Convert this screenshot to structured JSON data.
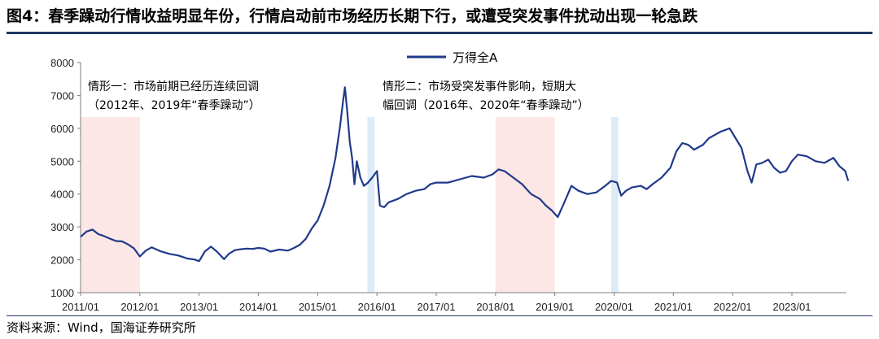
{
  "header": {
    "title": "图4：春季躁动行情收益明显年份，行情启动前市场经历长期下行，或遭受突发事件扰动出现一轮急跌"
  },
  "footer": {
    "source": "资料来源：Wind，国海证券研究所"
  },
  "chart_data": {
    "type": "line",
    "title": "",
    "xlabel": "",
    "ylabel": "",
    "ylim": [
      1000,
      8000
    ],
    "yticks": [
      1000,
      2000,
      3000,
      4000,
      5000,
      6000,
      7000,
      8000
    ],
    "xticks": [
      "2011/01",
      "2012/01",
      "2013/01",
      "2014/01",
      "2015/01",
      "2016/01",
      "2017/01",
      "2018/01",
      "2019/01",
      "2020/01",
      "2021/01",
      "2022/01",
      "2023/01"
    ],
    "legend": {
      "position": "top-center"
    },
    "series": [
      {
        "name": "万得全A",
        "color": "#1f3a8a",
        "x": [
          2011.0,
          2011.1,
          2011.2,
          2011.3,
          2011.4,
          2011.5,
          2011.6,
          2011.7,
          2011.8,
          2011.9,
          2012.0,
          2012.1,
          2012.2,
          2012.35,
          2012.5,
          2012.65,
          2012.8,
          2012.92,
          2013.0,
          2013.1,
          2013.2,
          2013.3,
          2013.42,
          2013.5,
          2013.6,
          2013.7,
          2013.8,
          2013.9,
          2014.0,
          2014.1,
          2014.2,
          2014.35,
          2014.5,
          2014.6,
          2014.7,
          2014.8,
          2014.9,
          2015.0,
          2015.1,
          2015.2,
          2015.3,
          2015.38,
          2015.43,
          2015.46,
          2015.5,
          2015.54,
          2015.58,
          2015.62,
          2015.66,
          2015.72,
          2015.78,
          2015.85,
          2015.92,
          2016.0,
          2016.05,
          2016.12,
          2016.2,
          2016.35,
          2016.5,
          2016.65,
          2016.8,
          2016.9,
          2017.0,
          2017.2,
          2017.4,
          2017.6,
          2017.8,
          2017.95,
          2018.05,
          2018.15,
          2018.3,
          2018.45,
          2018.6,
          2018.75,
          2018.85,
          2018.95,
          2019.05,
          2019.15,
          2019.28,
          2019.4,
          2019.55,
          2019.7,
          2019.85,
          2019.95,
          2020.05,
          2020.12,
          2020.2,
          2020.3,
          2020.45,
          2020.55,
          2020.65,
          2020.8,
          2020.95,
          2021.05,
          2021.15,
          2021.25,
          2021.35,
          2021.5,
          2021.6,
          2021.7,
          2021.8,
          2021.95,
          2022.05,
          2022.15,
          2022.25,
          2022.32,
          2022.4,
          2022.5,
          2022.6,
          2022.7,
          2022.8,
          2022.9,
          2023.0,
          2023.1,
          2023.25,
          2023.4,
          2023.55,
          2023.7,
          2023.8,
          2023.9,
          2023.95
        ],
        "values": [
          2700,
          2860,
          2920,
          2780,
          2720,
          2640,
          2570,
          2560,
          2470,
          2350,
          2100,
          2280,
          2380,
          2260,
          2180,
          2130,
          2040,
          2010,
          1960,
          2260,
          2400,
          2250,
          2020,
          2180,
          2290,
          2320,
          2340,
          2330,
          2360,
          2340,
          2250,
          2310,
          2280,
          2360,
          2460,
          2640,
          2950,
          3200,
          3650,
          4250,
          5100,
          6100,
          6850,
          7250,
          6500,
          5600,
          5100,
          4300,
          5000,
          4500,
          4250,
          4350,
          4500,
          4700,
          3650,
          3600,
          3750,
          3850,
          4000,
          4100,
          4150,
          4300,
          4350,
          4350,
          4450,
          4550,
          4500,
          4600,
          4750,
          4700,
          4500,
          4300,
          4000,
          3850,
          3650,
          3500,
          3300,
          3700,
          4250,
          4100,
          4000,
          4050,
          4250,
          4400,
          4350,
          3950,
          4100,
          4200,
          4250,
          4150,
          4300,
          4500,
          4800,
          5300,
          5550,
          5500,
          5350,
          5500,
          5700,
          5800,
          5900,
          6000,
          5700,
          5400,
          4700,
          4350,
          4900,
          4950,
          5050,
          4800,
          4650,
          4700,
          5000,
          5200,
          5150,
          5000,
          4950,
          5100,
          4850,
          4700,
          4400
        ]
      }
    ],
    "annotations": [
      {
        "lines": [
          "情形一：市场前期已经历连续回调",
          "（2012年、2019年“春季躁动”）"
        ]
      },
      {
        "lines": [
          "情形二：市场受突发事件影响，短期大",
          "幅回调（2016年、2020年“春季躁动”）"
        ]
      }
    ],
    "highlight_bands": [
      {
        "start": 2011.0,
        "end": 2012.0,
        "color": "#fce6e6"
      },
      {
        "start": 2018.0,
        "end": 2019.0,
        "color": "#fce6e6"
      },
      {
        "start": 2015.84,
        "end": 2015.96,
        "color": "#ddebf7"
      },
      {
        "start": 2019.95,
        "end": 2020.07,
        "color": "#ddebf7"
      }
    ]
  }
}
